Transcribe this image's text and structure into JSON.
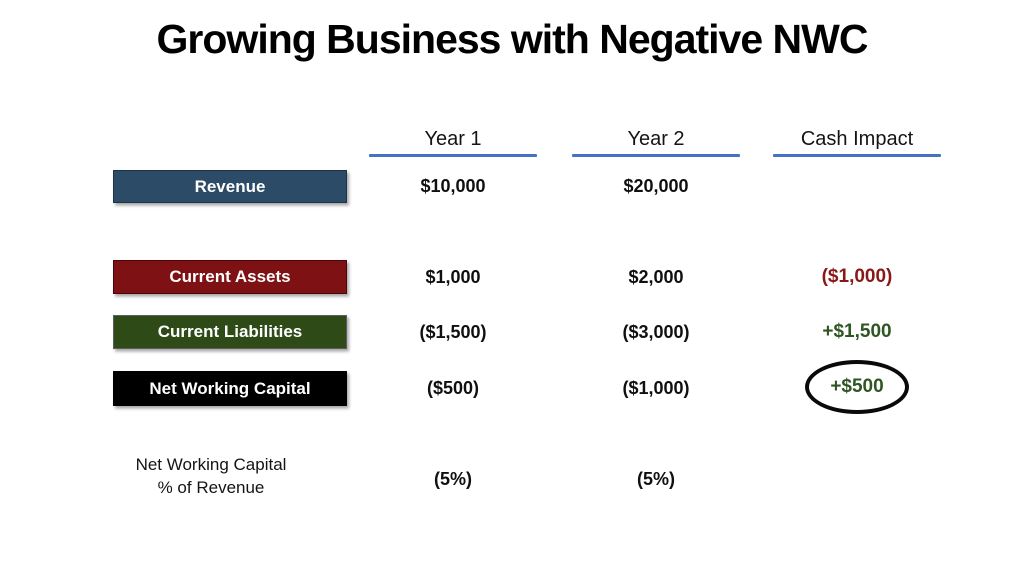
{
  "title": "Growing Business with Negative NWC",
  "columns": {
    "year1": "Year 1",
    "year2": "Year 2",
    "cash_impact": "Cash Impact"
  },
  "rows": {
    "revenue": {
      "label": "Revenue",
      "year1": "$10,000",
      "year2": "$20,000",
      "cash_impact": ""
    },
    "current_assets": {
      "label": "Current Assets",
      "year1": "$1,000",
      "year2": "$2,000",
      "cash_impact": "($1,000)"
    },
    "current_liabilities": {
      "label": "Current Liabilities",
      "year1": "($1,500)",
      "year2": "($3,000)",
      "cash_impact": "+$1,500"
    },
    "net_working_capital": {
      "label": "Net Working Capital",
      "year1": "($500)",
      "year2": "($1,000)",
      "cash_impact": "+$500",
      "cash_impact_circled": true
    },
    "nwc_pct_of_revenue": {
      "label_line1": "Net Working Capital",
      "label_line2": "% of Revenue",
      "year1": "(5%)",
      "year2": "(5%)"
    }
  },
  "colors": {
    "revenue_box": "#2C4B66",
    "current_assets_box": "#7E1113",
    "current_liabilities_box": "#2D4A17",
    "net_working_capital_box": "#000000",
    "header_underline": "#4472C4",
    "negative_cash_text": "#8B1818",
    "positive_cash_text": "#2E5522",
    "circle_annotation": "#0a0a0a"
  }
}
